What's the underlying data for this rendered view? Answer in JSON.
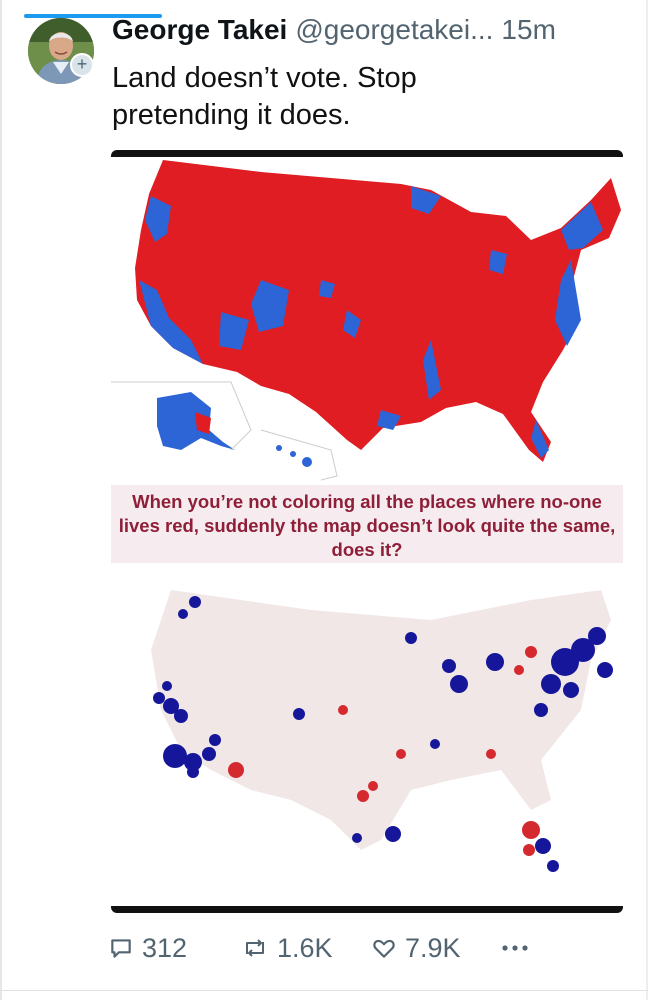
{
  "tweet": {
    "author_name": "George Takei",
    "author_handle": "@georgetakei...",
    "time": "15m",
    "text": "Land doesn’t vote. Stop pretending it does."
  },
  "media": {
    "caption": "When you’re not coloring all the places where no-one lives red, suddenly the map doesn’t look quite the same, does it?",
    "colors": {
      "red": "#e01d22",
      "blue": "#2d64d6",
      "dot_blue": "#16169a",
      "dot_red": "#d42a2f"
    }
  },
  "actions": {
    "replies": "312",
    "retweets": "1.6K",
    "likes": "7.9K"
  },
  "icons": [
    "reply-icon",
    "retweet-icon",
    "like-icon",
    "more-icon",
    "avatar-plus-icon"
  ]
}
